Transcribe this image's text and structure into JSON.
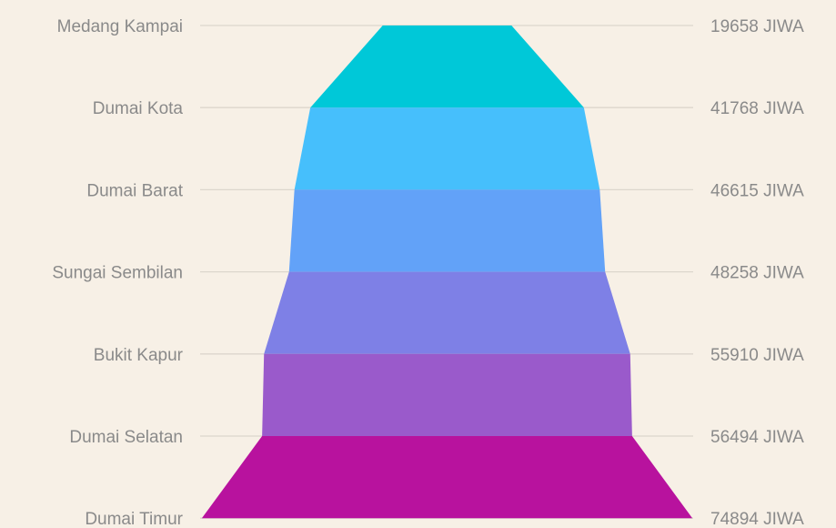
{
  "chart_data": {
    "type": "funnel",
    "title": "",
    "unit_suffix": " JIWA",
    "categories": [
      "Medang Kampai",
      "Dumai Kota",
      "Dumai Barat",
      "Sungai Sembilan",
      "Bukit Kapur",
      "Dumai Selatan",
      "Dumai Timur"
    ],
    "values": [
      19658,
      41768,
      46615,
      48258,
      55910,
      56494,
      74894
    ],
    "value_labels": [
      "19658 JIWA",
      "41768 JIWA",
      "46615 JIWA",
      "48258 JIWA",
      "55910 JIWA",
      "56494 JIWA",
      "74894 JIWA"
    ],
    "colors": [
      "#00c8d8",
      "#46bffc",
      "#62a2f8",
      "#7e80e6",
      "#9a5acb",
      "#b8129e"
    ],
    "guide_color": "#dcd6cc",
    "label_color": "#8a8a8a",
    "background": "#f7f0e6"
  }
}
